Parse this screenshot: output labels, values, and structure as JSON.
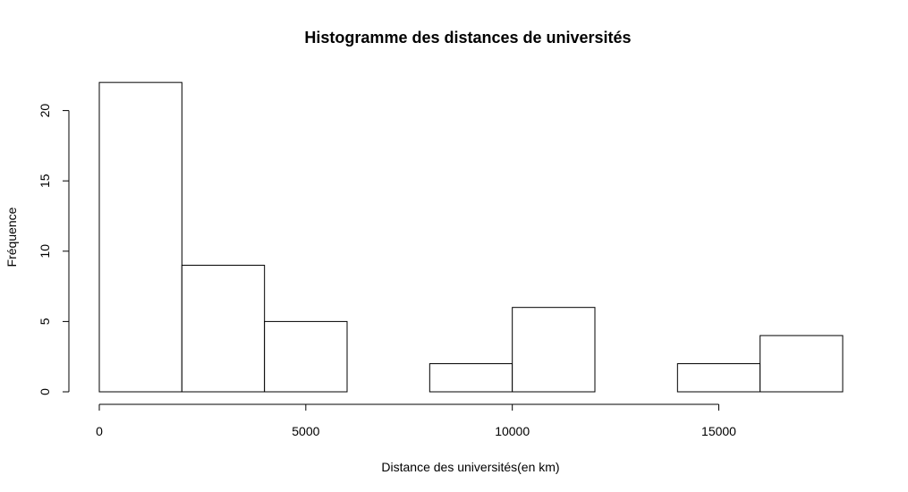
{
  "chart_data": {
    "type": "bar",
    "title": "Histogramme des distances de universités",
    "xlabel": "Distance des universités(en km)",
    "ylabel": "Fréquence",
    "bins": [
      {
        "start": 0,
        "end": 2000,
        "count": 22
      },
      {
        "start": 2000,
        "end": 4000,
        "count": 9
      },
      {
        "start": 4000,
        "end": 6000,
        "count": 5
      },
      {
        "start": 6000,
        "end": 8000,
        "count": 0
      },
      {
        "start": 8000,
        "end": 10000,
        "count": 2
      },
      {
        "start": 10000,
        "end": 12000,
        "count": 6
      },
      {
        "start": 12000,
        "end": 14000,
        "count": 0
      },
      {
        "start": 14000,
        "end": 16000,
        "count": 2
      },
      {
        "start": 16000,
        "end": 18000,
        "count": 4
      }
    ],
    "xlim": [
      0,
      18000
    ],
    "ylim": [
      0,
      22
    ],
    "x_ticks": [
      0,
      5000,
      10000,
      15000
    ],
    "x_tick_labels": [
      "0",
      "5000",
      "10000",
      "15000"
    ],
    "y_ticks": [
      0,
      5,
      10,
      15,
      20
    ],
    "y_tick_labels": [
      "0",
      "5",
      "10",
      "15",
      "20"
    ],
    "grid": false,
    "colors": {
      "bar_fill": "#ffffff",
      "bar_stroke": "#000000"
    }
  }
}
